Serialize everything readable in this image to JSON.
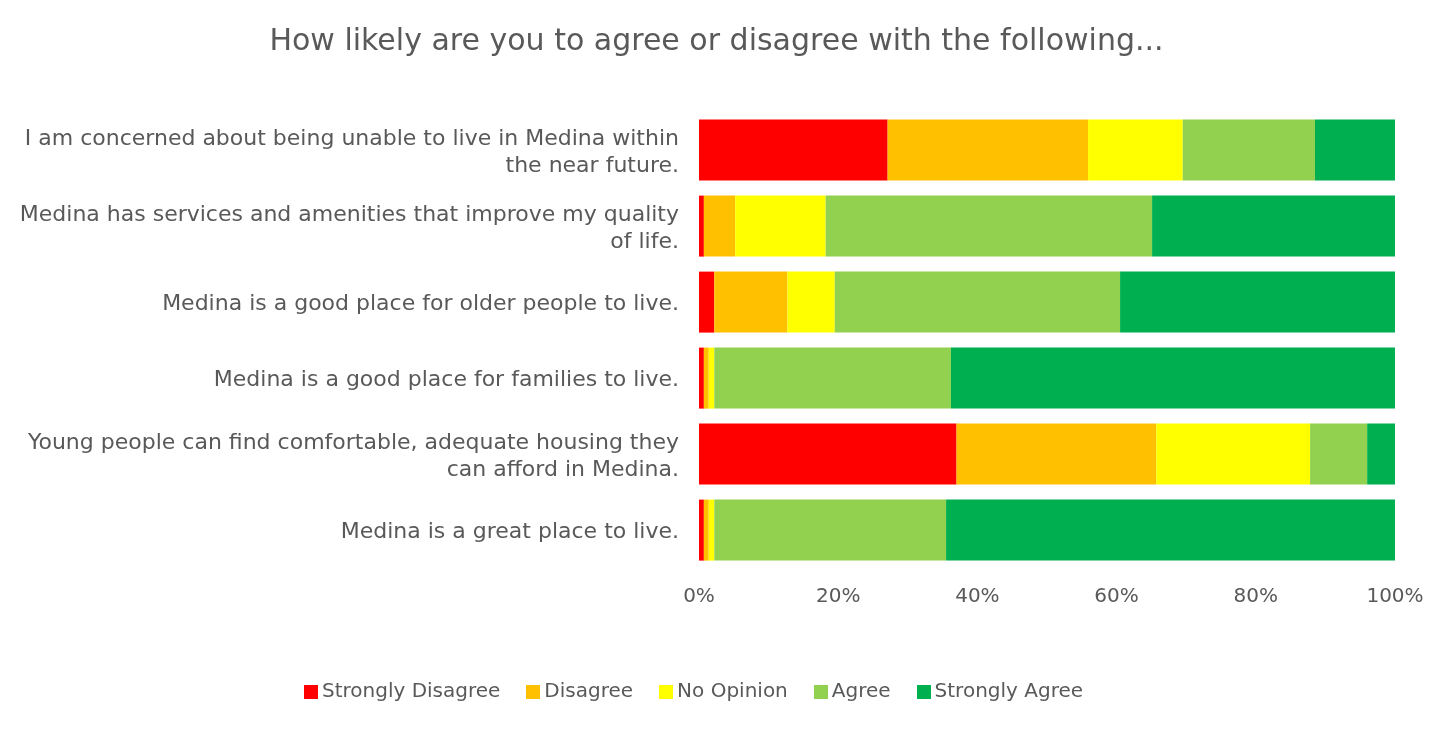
{
  "chart_data": {
    "type": "bar",
    "orientation": "horizontal",
    "stacked": true,
    "title": "How likely are you to agree or disagree with the following...",
    "categories": [
      "I am concerned about being unable to live in Medina within the near future.",
      "Medina has services and amenities that improve my quality of life.",
      "Medina is a good place for older people to live.",
      "Medina is a good place for families to live.",
      "Young people can find comfortable, adequate housing they can afford in Medina.",
      "Medina is a great place to live."
    ],
    "series": [
      {
        "name": "Strongly Disagree",
        "color": "#ff0000",
        "values": [
          27.1,
          0.7,
          2.2,
          0.7,
          37.0,
          0.7
        ]
      },
      {
        "name": "Disagree",
        "color": "#ffc000",
        "values": [
          28.8,
          4.5,
          10.5,
          0.7,
          28.7,
          0.7
        ]
      },
      {
        "name": "No Opinion",
        "color": "#ffff00",
        "values": [
          13.6,
          13.0,
          6.8,
          0.8,
          22.1,
          0.8
        ]
      },
      {
        "name": "Agree",
        "color": "#92d050",
        "values": [
          19.0,
          46.9,
          41.0,
          34.0,
          8.2,
          33.3
        ]
      },
      {
        "name": "Strongly Agree",
        "color": "#00b050",
        "values": [
          11.5,
          34.9,
          39.5,
          63.8,
          4.0,
          64.5
        ]
      }
    ],
    "xlim": [
      0,
      100
    ],
    "xticks": [
      {
        "value": 0,
        "label": "0%"
      },
      {
        "value": 20,
        "label": "20%"
      },
      {
        "value": 40,
        "label": "40%"
      },
      {
        "value": 60,
        "label": "60%"
      },
      {
        "value": 80,
        "label": "80%"
      },
      {
        "value": 100,
        "label": "100%"
      }
    ],
    "grid": false,
    "legend": "bottom"
  }
}
